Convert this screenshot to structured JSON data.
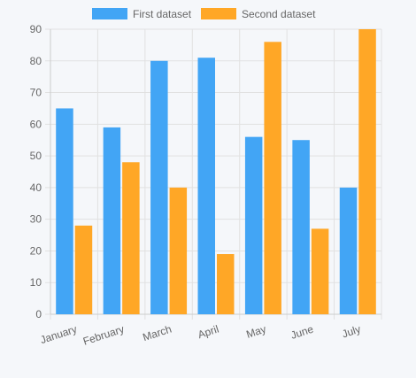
{
  "chart_data": {
    "type": "bar",
    "categories": [
      "January",
      "February",
      "March",
      "April",
      "May",
      "June",
      "July"
    ],
    "series": [
      {
        "name": "First dataset",
        "values": [
          65,
          59,
          80,
          81,
          56,
          55,
          40
        ],
        "color": "#42a5f5"
      },
      {
        "name": "Second dataset",
        "values": [
          28,
          48,
          40,
          19,
          86,
          27,
          90
        ],
        "color": "#ffa726"
      }
    ],
    "ylim": [
      0,
      90
    ],
    "yticks": [
      0,
      10,
      20,
      30,
      40,
      50,
      60,
      70,
      80,
      90
    ],
    "grid": true,
    "legend_position": "top"
  }
}
